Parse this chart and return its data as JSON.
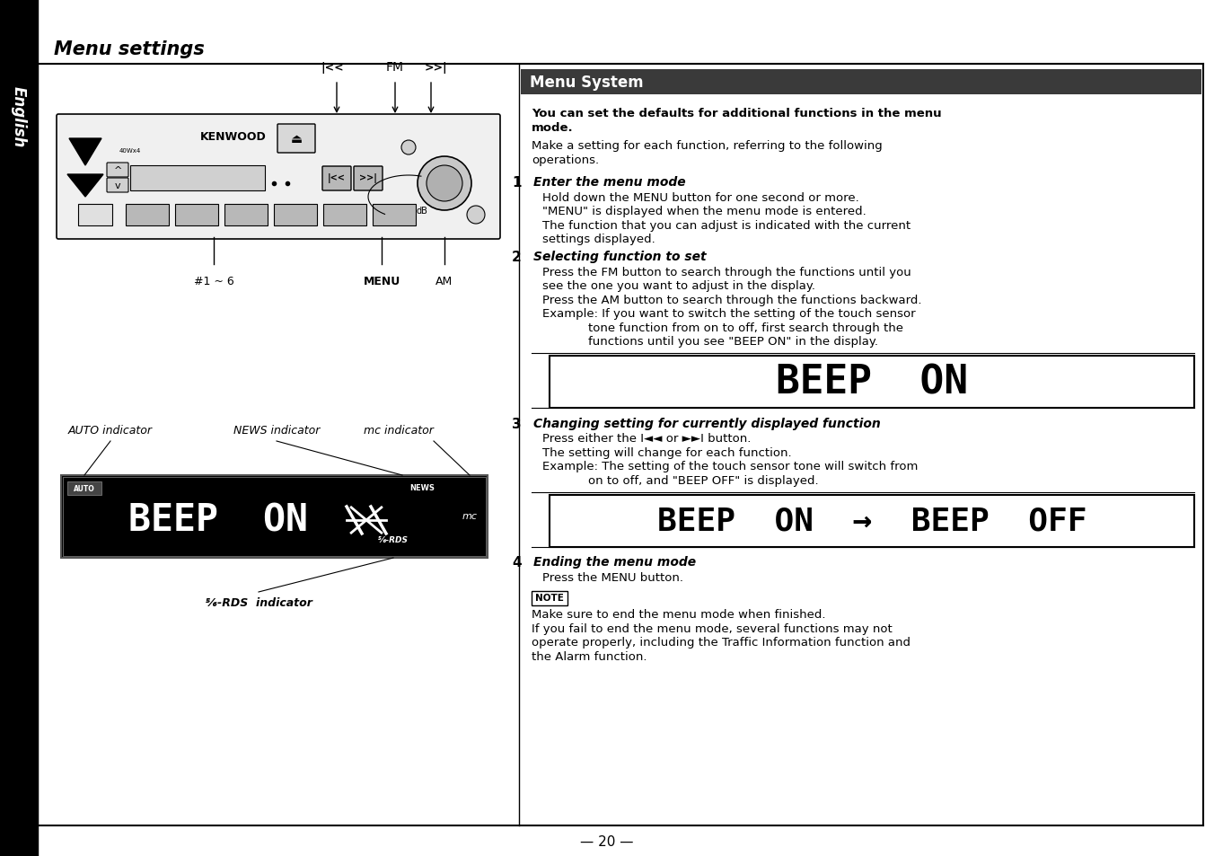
{
  "page_bg": "#ffffff",
  "sidebar_bg": "#000000",
  "sidebar_text": "English",
  "title_bar_bg": "#3a3a3a",
  "title_bar_text": "Menu System",
  "title_bar_text_color": "#ffffff",
  "section_header": "Menu settings",
  "page_number": "— 20 —",
  "intro_text_bold": "You can set the defaults for additional functions in the menu\nmode.",
  "intro_text_normal": "Make a setting for each function, referring to the following\noperations.",
  "steps": [
    {
      "num": "1",
      "heading": "Enter the menu mode",
      "body": [
        "Hold down the MENU button for one second or more.",
        "\"MENU\" is displayed when the menu mode is entered.",
        "The function that you can adjust is indicated with the current",
        "settings displayed."
      ]
    },
    {
      "num": "2",
      "heading": "Selecting function to set",
      "body": [
        "Press the FM button to search through the functions until you",
        "see the one you want to adjust in the display.",
        "Press the AM button to search through the functions backward.",
        "Example: If you want to switch the setting of the touch sensor",
        "            tone function from on to off, first search through the",
        "            functions until you see \"BEEP ON\" in the display."
      ],
      "has_display": true,
      "display_text": "BEEP  ON"
    },
    {
      "num": "3",
      "heading": "Changing setting for currently displayed function",
      "body": [
        "Press either the I◄◄ or ►►I button.",
        "The setting will change for each function.",
        "Example: The setting of the touch sensor tone will switch from",
        "            on to off, and \"BEEP OFF\" is displayed."
      ],
      "has_display": true,
      "display_text": "BEEP  ON  →  BEEP  OFF"
    },
    {
      "num": "4",
      "heading": "Ending the menu mode",
      "body": [
        "Press the MENU button."
      ]
    }
  ],
  "note_text": [
    "Make sure to end the menu mode when finished.",
    "If you fail to end the menu mode, several functions may not",
    "operate properly, including the Traffic Information function and",
    "the Alarm function."
  ]
}
